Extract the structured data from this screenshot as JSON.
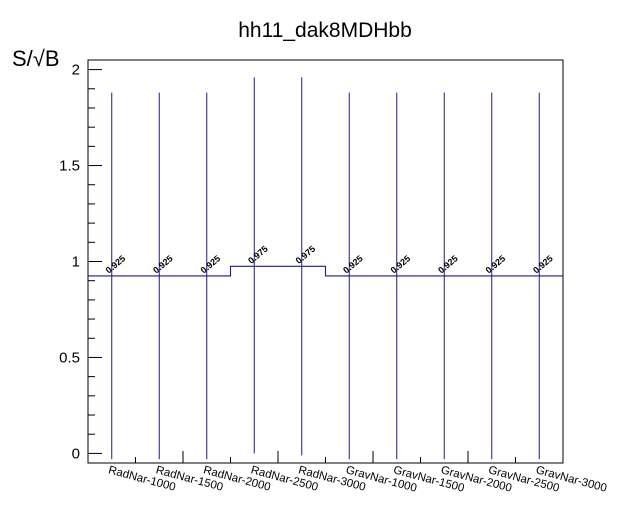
{
  "chart_data": {
    "type": "bar",
    "title": "hh11_dak8MDHbb",
    "xlabel": "",
    "ylabel": "S/√B",
    "ylim": [
      -0.05,
      2.05
    ],
    "yticks": [
      "0",
      "0.5",
      "1",
      "1.5",
      "2"
    ],
    "grid": false,
    "legend": "none",
    "categories": [
      "RadNar-1000",
      "RadNar-1500",
      "RadNar-2000",
      "RadNar-2500",
      "RadNar-3000",
      "GravNar-1000",
      "GravNar-1500",
      "GravNar-2000",
      "GravNar-2500",
      "GravNar-3000"
    ],
    "values": [
      0.925,
      0.925,
      0.925,
      0.975,
      0.975,
      0.925,
      0.925,
      0.925,
      0.925,
      0.925
    ],
    "value_labels": [
      "0.925",
      "0.925",
      "0.925",
      "0.975",
      "0.975",
      "0.925",
      "0.925",
      "0.925",
      "0.925",
      "0.925"
    ],
    "error_low": [
      -0.03,
      -0.03,
      -0.03,
      0.0,
      -0.01,
      -0.03,
      -0.03,
      -0.03,
      -0.03,
      -0.03
    ],
    "error_high": [
      1.88,
      1.88,
      1.88,
      1.96,
      1.96,
      1.88,
      1.88,
      1.88,
      1.88,
      1.88
    ],
    "color": "#1a1a8c"
  }
}
